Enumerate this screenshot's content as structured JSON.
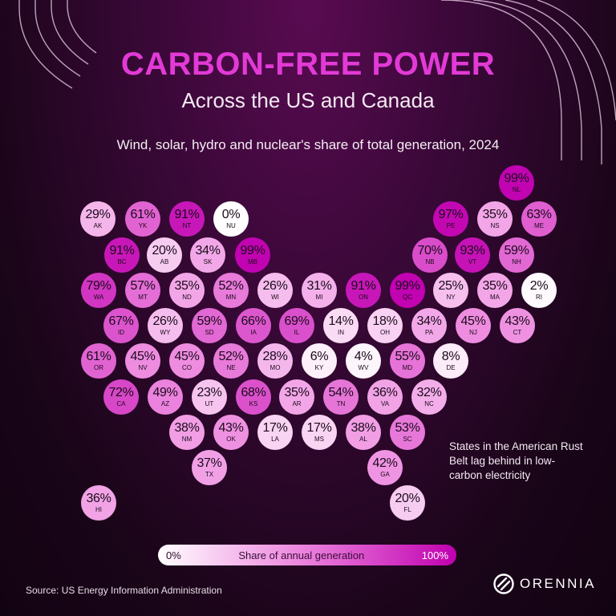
{
  "header": {
    "title": "CARBON-FREE POWER",
    "subtitle": "Across the US and Canada",
    "description": "Wind, solar, hydro and nuclear's share of total generation, 2024"
  },
  "colors": {
    "low": "#ffffff",
    "high": "#c000b0",
    "title": "#e23ad6"
  },
  "chart_data": {
    "type": "tile-map",
    "value_unit": "%",
    "legend": {
      "min_label": "0%",
      "label": "Share of annual generation",
      "max_label": "100%"
    },
    "states": [
      {
        "code": "NL",
        "label": "99%",
        "value": 99
      },
      {
        "code": "AK",
        "label": "29%",
        "value": 29
      },
      {
        "code": "YK",
        "label": "61%",
        "value": 61
      },
      {
        "code": "NT",
        "label": "91%",
        "value": 91
      },
      {
        "code": "NU",
        "label": "0%",
        "value": 0
      },
      {
        "code": "PE",
        "label": "97%",
        "value": 97
      },
      {
        "code": "NS",
        "label": "35%",
        "value": 35
      },
      {
        "code": "ME",
        "label": "63%",
        "value": 63
      },
      {
        "code": "BC",
        "label": "91%",
        "value": 91
      },
      {
        "code": "AB",
        "label": "20%",
        "value": 20
      },
      {
        "code": "SK",
        "label": "34%",
        "value": 34
      },
      {
        "code": "MB",
        "label": "99%",
        "value": 99
      },
      {
        "code": "NB",
        "label": "70%",
        "value": 70
      },
      {
        "code": "VT",
        "label": "93%",
        "value": 93
      },
      {
        "code": "NH",
        "label": "59%",
        "value": 59
      },
      {
        "code": "WA",
        "label": "79%",
        "value": 79
      },
      {
        "code": "MT",
        "label": "57%",
        "value": 57
      },
      {
        "code": "ND",
        "label": "35%",
        "value": 35
      },
      {
        "code": "MN",
        "label": "52%",
        "value": 52
      },
      {
        "code": "WI",
        "label": "26%",
        "value": 26
      },
      {
        "code": "MI",
        "label": "31%",
        "value": 31
      },
      {
        "code": "ON",
        "label": "91%",
        "value": 91
      },
      {
        "code": "QC",
        "label": "99%",
        "value": 99
      },
      {
        "code": "NY",
        "label": "25%",
        "value": 25
      },
      {
        "code": "MA",
        "label": "35%",
        "value": 35
      },
      {
        "code": "RI",
        "label": "2%",
        "value": 2
      },
      {
        "code": "ID",
        "label": "67%",
        "value": 67
      },
      {
        "code": "WY",
        "label": "26%",
        "value": 26
      },
      {
        "code": "SD",
        "label": "59%",
        "value": 59
      },
      {
        "code": "IA",
        "label": "66%",
        "value": 66
      },
      {
        "code": "IL",
        "label": "69%",
        "value": 69
      },
      {
        "code": "IN",
        "label": "14%",
        "value": 14
      },
      {
        "code": "OH",
        "label": "18%",
        "value": 18
      },
      {
        "code": "PA",
        "label": "34%",
        "value": 34
      },
      {
        "code": "NJ",
        "label": "45%",
        "value": 45
      },
      {
        "code": "CT",
        "label": "43%",
        "value": 43
      },
      {
        "code": "OR",
        "label": "61%",
        "value": 61
      },
      {
        "code": "NV",
        "label": "45%",
        "value": 45
      },
      {
        "code": "CO",
        "label": "45%",
        "value": 45
      },
      {
        "code": "NE",
        "label": "52%",
        "value": 52
      },
      {
        "code": "MO",
        "label": "28%",
        "value": 28
      },
      {
        "code": "KY",
        "label": "6%",
        "value": 6
      },
      {
        "code": "WV",
        "label": "4%",
        "value": 4
      },
      {
        "code": "MD",
        "label": "55%",
        "value": 55
      },
      {
        "code": "DE",
        "label": "8%",
        "value": 8
      },
      {
        "code": "CA",
        "label": "72%",
        "value": 72
      },
      {
        "code": "AZ",
        "label": "49%",
        "value": 49
      },
      {
        "code": "UT",
        "label": "23%",
        "value": 23
      },
      {
        "code": "KS",
        "label": "68%",
        "value": 68
      },
      {
        "code": "AR",
        "label": "35%",
        "value": 35
      },
      {
        "code": "TN",
        "label": "54%",
        "value": 54
      },
      {
        "code": "VA",
        "label": "36%",
        "value": 36
      },
      {
        "code": "NC",
        "label": "32%",
        "value": 32
      },
      {
        "code": "NM",
        "label": "38%",
        "value": 38
      },
      {
        "code": "OK",
        "label": "43%",
        "value": 43
      },
      {
        "code": "LA",
        "label": "17%",
        "value": 17
      },
      {
        "code": "MS",
        "label": "17%",
        "value": 17
      },
      {
        "code": "AL",
        "label": "38%",
        "value": 38
      },
      {
        "code": "SC",
        "label": "53%",
        "value": 53
      },
      {
        "code": "TX",
        "label": "37%",
        "value": 37
      },
      {
        "code": "GA",
        "label": "42%",
        "value": 42
      },
      {
        "code": "HI",
        "label": "36%",
        "value": 36
      },
      {
        "code": "FL",
        "label": "20%",
        "value": 20
      }
    ]
  },
  "annotation": "States in the American Rust Belt lag behind in low-carbon electricity",
  "footer": {
    "source": "Source: US Energy Information Administration",
    "brand": "ORENNIA",
    "brand_icon": "orennia-logo-icon"
  }
}
